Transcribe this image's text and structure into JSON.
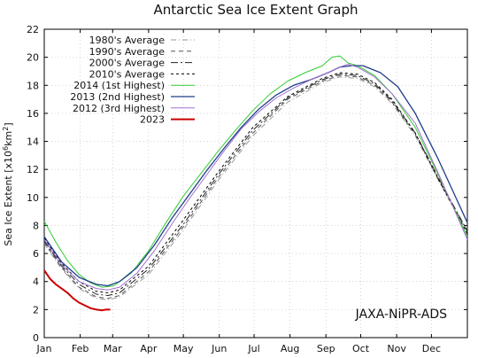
{
  "chart_data": {
    "type": "line",
    "title": "Antarctic Sea Ice Extent Graph",
    "ylabel_main": "Sea Ice Extent [x10",
    "ylabel_sup1": "6",
    "ylabel_mid": "km",
    "ylabel_sup2": "2",
    "ylabel_end": "]",
    "credit": "JAXA-NiPR-ADS",
    "x_tick_labels": [
      "Jan",
      "Feb",
      "Mar",
      "Apr",
      "May",
      "Jun",
      "Jul",
      "Aug",
      "Sep",
      "Oct",
      "Nov",
      "Dec"
    ],
    "x_tick_positions": [
      0,
      31,
      59,
      90,
      120,
      151,
      181,
      212,
      243,
      273,
      304,
      334
    ],
    "xlim": [
      0,
      365
    ],
    "ylim": [
      0,
      22
    ],
    "y_ticks": [
      0,
      2,
      4,
      6,
      8,
      10,
      12,
      14,
      16,
      18,
      20,
      22
    ],
    "grid": true,
    "legend_position": "top-left",
    "series": [
      {
        "name": "1980's Average",
        "color": "#999999",
        "dash": "6,3,1,3",
        "width": 1,
        "x": [
          0,
          15,
          30,
          45,
          55,
          65,
          90,
          120,
          150,
          180,
          210,
          240,
          255,
          270,
          285,
          300,
          320,
          340,
          365
        ],
        "y": [
          6.7,
          4.9,
          3.5,
          2.8,
          2.7,
          2.9,
          4.5,
          7.7,
          11.2,
          14.4,
          16.8,
          18.2,
          18.6,
          18.5,
          17.9,
          16.7,
          14.4,
          11.2,
          7.5
        ]
      },
      {
        "name": "1990's Average",
        "color": "#555555",
        "dash": "5,4",
        "width": 1,
        "x": [
          0,
          15,
          30,
          45,
          55,
          65,
          90,
          120,
          150,
          180,
          210,
          240,
          255,
          270,
          285,
          300,
          320,
          340,
          365
        ],
        "y": [
          6.8,
          5.0,
          3.6,
          2.9,
          2.8,
          3.0,
          4.7,
          7.9,
          11.4,
          14.6,
          17.0,
          18.3,
          18.7,
          18.6,
          18.0,
          16.8,
          14.5,
          11.3,
          7.6
        ]
      },
      {
        "name": "2000's Average",
        "color": "#222222",
        "dash": "8,3,2,3",
        "width": 1,
        "x": [
          0,
          15,
          30,
          45,
          55,
          65,
          90,
          120,
          150,
          180,
          210,
          240,
          255,
          270,
          285,
          300,
          320,
          340,
          365
        ],
        "y": [
          6.9,
          5.1,
          3.8,
          3.1,
          3.0,
          3.2,
          4.9,
          8.1,
          11.6,
          14.8,
          17.1,
          18.4,
          18.8,
          18.7,
          18.1,
          16.9,
          14.6,
          11.4,
          7.6
        ]
      },
      {
        "name": "2010's Average",
        "color": "#000000",
        "dash": "3,3",
        "width": 1,
        "x": [
          0,
          15,
          30,
          45,
          55,
          65,
          90,
          120,
          150,
          180,
          210,
          240,
          255,
          270,
          285,
          300,
          320,
          340,
          365
        ],
        "y": [
          7.1,
          5.3,
          4.0,
          3.3,
          3.2,
          3.4,
          5.1,
          8.4,
          11.8,
          15.0,
          17.2,
          18.5,
          18.9,
          18.8,
          18.2,
          17.0,
          14.6,
          11.3,
          7.4
        ]
      },
      {
        "name": "2014 (1st Highest)",
        "color": "#33cc33",
        "dash": "",
        "width": 1,
        "x": [
          0,
          10,
          20,
          30,
          40,
          50,
          60,
          75,
          90,
          105,
          120,
          135,
          150,
          165,
          180,
          195,
          210,
          225,
          240,
          248,
          255,
          262,
          270,
          285,
          300,
          320,
          340,
          365
        ],
        "y": [
          8.3,
          6.8,
          5.5,
          4.5,
          3.9,
          3.6,
          3.7,
          4.6,
          6.2,
          8.2,
          10.1,
          11.7,
          13.3,
          14.8,
          16.2,
          17.4,
          18.3,
          18.9,
          19.4,
          20.0,
          20.1,
          19.6,
          19.4,
          18.7,
          17.4,
          15.0,
          11.6,
          7.2
        ]
      },
      {
        "name": "2013 (2nd Highest)",
        "color": "#1f3d8a",
        "dash": "",
        "width": 1.3,
        "x": [
          0,
          15,
          30,
          45,
          55,
          65,
          80,
          95,
          110,
          125,
          140,
          155,
          170,
          185,
          200,
          215,
          230,
          245,
          255,
          265,
          275,
          290,
          305,
          320,
          340,
          365
        ],
        "y": [
          7.2,
          5.4,
          4.3,
          3.8,
          3.7,
          4.0,
          5.0,
          6.6,
          8.5,
          10.2,
          11.9,
          13.5,
          15.0,
          16.3,
          17.3,
          18.0,
          18.4,
          18.9,
          19.3,
          19.4,
          19.4,
          18.9,
          17.9,
          16.0,
          12.7,
          8.2
        ]
      },
      {
        "name": "2012 (3rd Highest)",
        "color": "#a070d0",
        "dash": "",
        "width": 1,
        "x": [
          0,
          15,
          30,
          45,
          55,
          65,
          80,
          95,
          110,
          125,
          140,
          155,
          170,
          185,
          200,
          215,
          230,
          245,
          255,
          262,
          270,
          285,
          300,
          320,
          340,
          365
        ],
        "y": [
          7.0,
          5.2,
          4.0,
          3.5,
          3.4,
          3.6,
          4.6,
          6.2,
          8.1,
          9.9,
          11.6,
          13.3,
          14.9,
          16.1,
          17.1,
          17.8,
          18.4,
          18.9,
          19.3,
          19.5,
          19.3,
          18.6,
          17.4,
          15.3,
          11.7,
          7.0
        ]
      },
      {
        "name": "2023",
        "color": "#cc0000",
        "dash": "",
        "width": 2,
        "x": [
          0,
          5,
          10,
          15,
          20,
          25,
          30,
          35,
          40,
          45,
          50,
          53,
          57
        ],
        "y": [
          4.8,
          4.2,
          3.8,
          3.5,
          3.2,
          2.8,
          2.5,
          2.3,
          2.1,
          2.0,
          1.95,
          2.0,
          2.0
        ]
      }
    ]
  }
}
